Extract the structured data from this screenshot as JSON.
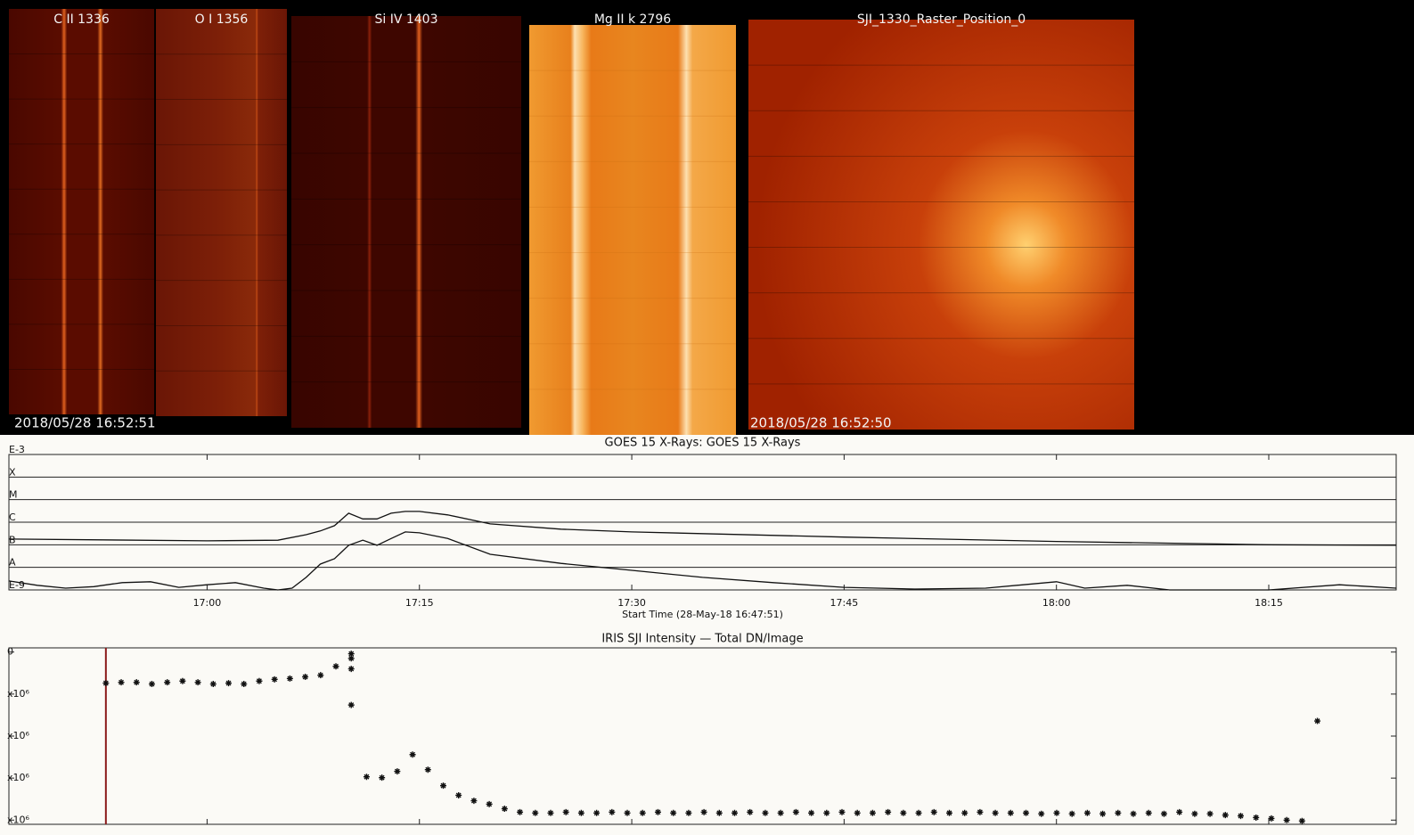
{
  "panels": [
    {
      "label": "C II 1336"
    },
    {
      "label": "O I 1356"
    },
    {
      "label": "Si IV 1403"
    },
    {
      "label": "Mg II k 2796"
    },
    {
      "label": "SJI_1330_Raster_Position_0"
    }
  ],
  "timestamps": [
    "2018/05/28 16:52:51",
    "2018/05/28 16:52:50"
  ],
  "chart_data": [
    {
      "type": "line",
      "title": "GOES 15 X-Rays: GOES 15 X-Rays",
      "x_label": "Start Time (28-May-18 16:47:51)",
      "xlim": [
        "16:46",
        "18:24"
      ],
      "xticks": [
        "17:00",
        "17:15",
        "17:30",
        "17:45",
        "18:00",
        "18:15"
      ],
      "log_scale": true,
      "ylim": [
        1e-09,
        0.001
      ],
      "yticks": [
        {
          "value": 0.001,
          "label": "E-3"
        },
        {
          "value": 0.0001,
          "label": "X"
        },
        {
          "value": 1e-05,
          "label": "M"
        },
        {
          "value": 1e-06,
          "label": "C"
        },
        {
          "value": 1e-07,
          "label": "B"
        },
        {
          "value": 1e-08,
          "label": "A"
        },
        {
          "value": 1e-09,
          "label": "E-9"
        }
      ],
      "grid": true,
      "series": [
        {
          "color": "#111111",
          "x": [
            "16:46",
            "17:00",
            "17:05",
            "17:07",
            "17:08",
            "17:09",
            "17:10",
            "17:11",
            "17:12",
            "17:13",
            "17:14",
            "17:15",
            "17:17",
            "17:20",
            "17:25",
            "17:30",
            "17:45",
            "18:00",
            "18:15",
            "18:24"
          ],
          "values": [
            1.8e-07,
            1.5e-07,
            1.6e-07,
            2.8e-07,
            4.1e-07,
            7e-07,
            2.5e-06,
            1.4e-06,
            1.4e-06,
            2.5e-06,
            3e-06,
            3e-06,
            2.1e-06,
            8.4e-07,
            4.9e-07,
            3.7e-07,
            2.2e-07,
            1.4e-07,
            1e-07,
            9.5e-08
          ]
        },
        {
          "color": "#111111",
          "x": [
            "16:46",
            "16:48",
            "16:50",
            "16:52",
            "16:54",
            "16:56",
            "16:58",
            "17:00",
            "17:02",
            "17:04",
            "17:05",
            "17:06",
            "17:07",
            "17:08",
            "17:09",
            "17:10",
            "17:11",
            "17:12",
            "17:13",
            "17:14",
            "17:15",
            "17:17",
            "17:20",
            "17:25",
            "17:30",
            "17:35",
            "17:40",
            "17:45",
            "17:50",
            "17:55",
            "18:00",
            "18:02",
            "18:05",
            "18:08",
            "18:15",
            "18:20",
            "18:24"
          ],
          "values": [
            2.5e-09,
            1.6e-09,
            1.2e-09,
            1.4e-09,
            2.1e-09,
            2.3e-09,
            1.3e-09,
            1.7e-09,
            2.1e-09,
            1.2e-09,
            1e-09,
            1.2e-09,
            3.6e-09,
            1.4e-08,
            2.4e-08,
            9.5e-08,
            1.6e-07,
            9.5e-08,
            1.9e-07,
            3.7e-07,
            3.4e-07,
            1.9e-07,
            3.8e-08,
            1.5e-08,
            7.4e-09,
            3.6e-09,
            2.1e-09,
            1.3e-09,
            1.1e-09,
            1.2e-09,
            2.3e-09,
            1.2e-09,
            1.6e-09,
            1e-09,
            1e-09,
            1.7e-09,
            1.2e-09
          ]
        }
      ]
    },
    {
      "type": "scatter",
      "title": "IRIS SJI Intensity — Total DN/Image",
      "xlim": [
        "16:46",
        "18:24"
      ],
      "xticks": [
        "17:00",
        "17:15",
        "17:30",
        "17:45",
        "18:00",
        "18:15"
      ],
      "ylim": [
        4.1,
        -0.1
      ],
      "yticks": [
        {
          "value": 0,
          "label": "0"
        },
        {
          "value": 1,
          "label": "x10⁶"
        },
        {
          "value": 2,
          "label": "x10⁶"
        },
        {
          "value": 3,
          "label": "x10⁶"
        },
        {
          "value": 4,
          "label": "x10⁶"
        }
      ],
      "marker_x": "16:52:51",
      "marker_color": "#8b1a1a",
      "color": "#111111",
      "x": [
        "16:52:51",
        "16:53:56",
        "16:55:01",
        "16:56:06",
        "16:57:11",
        "16:58:16",
        "16:59:21",
        "17:00:26",
        "17:01:31",
        "17:02:36",
        "17:03:41",
        "17:04:46",
        "17:05:51",
        "17:06:56",
        "17:08:01",
        "17:09:06",
        "17:10:11",
        "17:10:11",
        "17:10:11",
        "17:10:11",
        "17:11:16",
        "17:12:21",
        "17:13:26",
        "17:14:31",
        "17:15:36",
        "17:16:41",
        "17:17:46",
        "17:18:51",
        "17:19:56",
        "17:21:01",
        "17:22:06",
        "17:23:11",
        "17:24:16",
        "17:25:21",
        "17:26:26",
        "17:27:31",
        "17:28:36",
        "17:29:41",
        "17:30:46",
        "17:31:51",
        "17:32:56",
        "17:34:01",
        "17:35:06",
        "17:36:11",
        "17:37:16",
        "17:38:21",
        "17:39:26",
        "17:40:31",
        "17:41:36",
        "17:42:41",
        "17:43:46",
        "17:44:51",
        "17:45:56",
        "17:47:01",
        "17:48:06",
        "17:49:11",
        "17:50:16",
        "17:51:21",
        "17:52:26",
        "17:53:31",
        "17:54:36",
        "17:55:41",
        "17:56:46",
        "17:57:51",
        "17:58:56",
        "18:00:01",
        "18:01:06",
        "18:02:11",
        "18:03:16",
        "18:04:21",
        "18:05:26",
        "18:06:31",
        "18:07:36",
        "18:08:41",
        "18:09:46",
        "18:10:51",
        "18:11:56",
        "18:13:01",
        "18:14:06",
        "18:15:11",
        "18:16:16",
        "18:17:21",
        "18:18:26"
      ],
      "values": [
        0.74,
        0.72,
        0.72,
        0.76,
        0.72,
        0.69,
        0.72,
        0.76,
        0.74,
        0.76,
        0.69,
        0.65,
        0.63,
        0.59,
        0.55,
        0.34,
        0.15,
        0.04,
        0.4,
        1.26,
        2.97,
        2.99,
        2.84,
        2.44,
        2.8,
        3.18,
        3.41,
        3.54,
        3.62,
        3.73,
        3.81,
        3.83,
        3.83,
        3.81,
        3.83,
        3.83,
        3.81,
        3.83,
        3.83,
        3.81,
        3.83,
        3.83,
        3.81,
        3.83,
        3.83,
        3.81,
        3.83,
        3.83,
        3.81,
        3.83,
        3.83,
        3.81,
        3.83,
        3.83,
        3.81,
        3.83,
        3.83,
        3.81,
        3.83,
        3.83,
        3.81,
        3.83,
        3.83,
        3.83,
        3.85,
        3.83,
        3.85,
        3.83,
        3.85,
        3.83,
        3.85,
        3.83,
        3.85,
        3.81,
        3.85,
        3.85,
        3.88,
        3.9,
        3.94,
        3.96,
        4.0,
        4.02,
        1.64
      ]
    }
  ]
}
